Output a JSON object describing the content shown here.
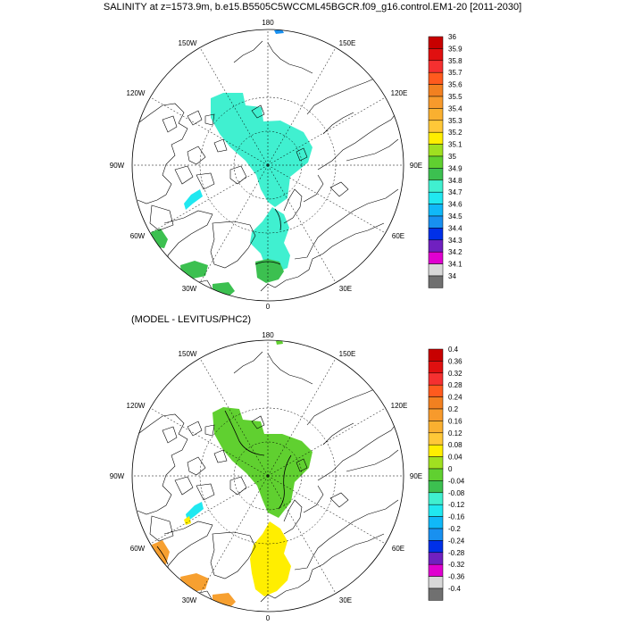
{
  "title": "SALINITY at z=1573.9m, b.e15.B5505C5WCCML45BGCR.f09_g16.control.EM1-20 [2011-2030]",
  "subtitle": "(MODEL - LEVITUS/PHC2)",
  "lon_labels": [
    "180",
    "150E",
    "120E",
    "90E",
    "60E",
    "30E",
    "0",
    "30W",
    "60W",
    "90W",
    "120W",
    "150W"
  ],
  "top_colorbar": {
    "labels": [
      "36",
      "35.9",
      "35.8",
      "35.7",
      "35.6",
      "35.5",
      "35.4",
      "35.3",
      "35.2",
      "35.1",
      "35",
      "34.9",
      "34.8",
      "34.7",
      "34.6",
      "34.5",
      "34.4",
      "34.3",
      "34.2",
      "34.1",
      "34"
    ],
    "colors": [
      "#c80000",
      "#e01010",
      "#f53030",
      "#ff5a1e",
      "#f28020",
      "#f79a2c",
      "#fab030",
      "#ffc838",
      "#ffee00",
      "#a0e020",
      "#60d030",
      "#3cc050",
      "#40f0d0",
      "#20e8f0",
      "#10b8f8",
      "#1890f0",
      "#0030e8",
      "#7020c0",
      "#e000d0",
      "#d8d8d8",
      "#707070"
    ]
  },
  "bottom_colorbar": {
    "labels": [
      "0.4",
      "0.36",
      "0.32",
      "0.28",
      "0.24",
      "0.2",
      "0.16",
      "0.12",
      "0.08",
      "0.04",
      "0",
      "-0.04",
      "-0.08",
      "-0.12",
      "-0.16",
      "-0.2",
      "-0.24",
      "-0.28",
      "-0.32",
      "-0.36",
      "-0.4"
    ],
    "colors": [
      "#c80000",
      "#e01010",
      "#f53030",
      "#ff5a1e",
      "#f28020",
      "#f79a2c",
      "#fab030",
      "#ffc838",
      "#ffee00",
      "#a0e020",
      "#60d030",
      "#3cc050",
      "#40f0d0",
      "#20e8f0",
      "#10b8f8",
      "#1890f0",
      "#0030e8",
      "#7020c0",
      "#e000d0",
      "#d8d8d8",
      "#707070"
    ]
  },
  "field_colors": {
    "top_main": "#40f0d0",
    "top_green": "#3cc050",
    "top_blue": "#1890f0",
    "top_lightcyan": "#20e8f0",
    "bottom_green": "#60d030",
    "bottom_yellow": "#ffee00",
    "bottom_orange": "#f7a030",
    "bottom_lightcyan": "#20e8f0",
    "bottom_cyan": "#40f0d0"
  }
}
